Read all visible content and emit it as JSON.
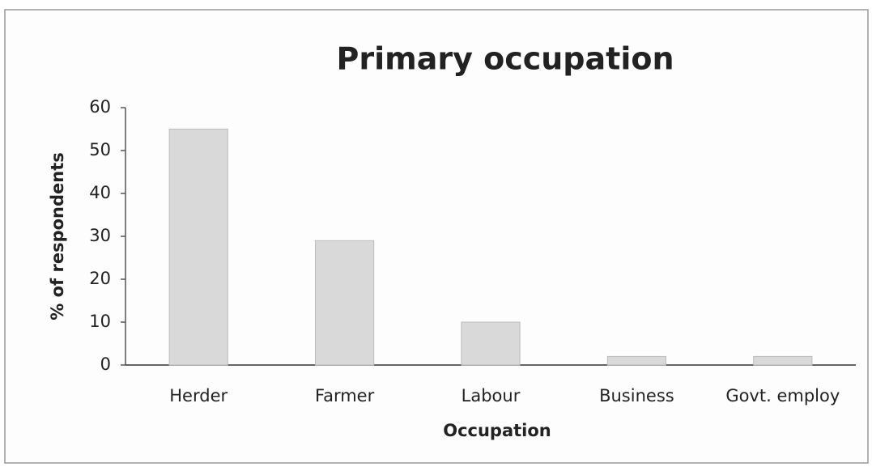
{
  "chart_data": {
    "type": "bar",
    "title": "Primary occupation",
    "x_label": "Occupation",
    "y_label": "% of respondents",
    "categories": [
      "Herder",
      "Farmer",
      "Labour",
      "Business",
      "Govt. employ"
    ],
    "values": [
      55,
      29,
      10,
      2,
      2
    ],
    "color": "#d9d9d9",
    "ylim": [
      0,
      60
    ],
    "yticks": [
      0,
      10,
      20,
      30,
      40,
      50,
      60
    ],
    "grid": false
  }
}
